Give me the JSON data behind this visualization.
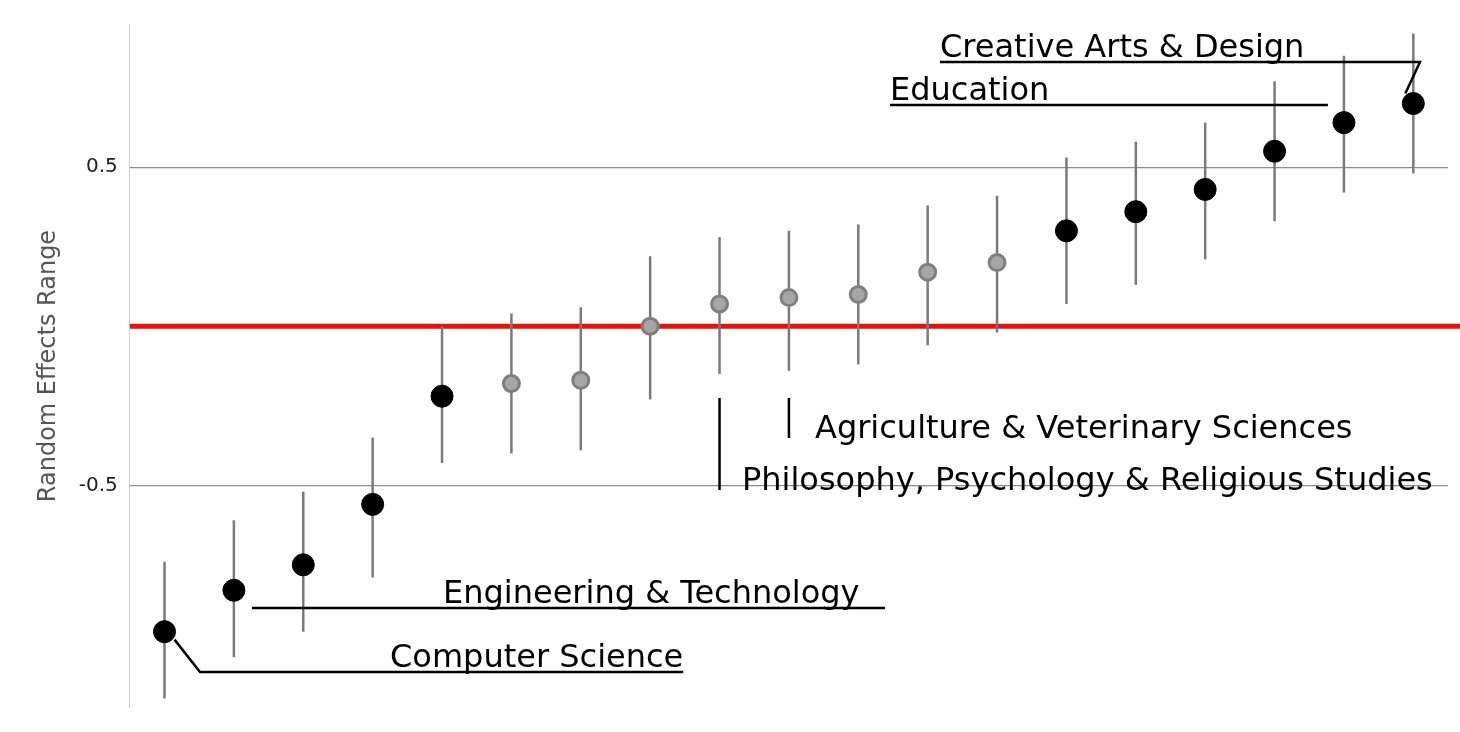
{
  "chart_data": {
    "type": "scatter",
    "ylabel": "Random Effects Range",
    "categories": [
      null,
      null,
      null,
      null,
      null,
      null,
      null,
      null,
      null,
      null,
      null,
      null,
      null,
      null,
      null,
      null,
      null,
      null,
      null
    ],
    "series": [
      {
        "name": null,
        "color": "#000000",
        "values": [
          -0.96,
          -0.83,
          -0.75,
          -0.56,
          -0.22,
          null,
          null,
          null,
          null,
          null,
          null,
          null,
          null,
          0.3,
          0.36,
          0.43,
          0.55,
          0.64,
          0.7
        ],
        "errors": [
          [
            -1.17,
            -0.74
          ],
          [
            -1.04,
            -0.61
          ],
          [
            -0.96,
            -0.52
          ],
          [
            -0.79,
            -0.35
          ],
          [
            -0.43,
            0.0
          ],
          null,
          null,
          null,
          null,
          null,
          null,
          null,
          null,
          [
            0.07,
            0.53
          ],
          [
            0.13,
            0.58
          ],
          [
            0.21,
            0.64
          ],
          [
            0.33,
            0.77
          ],
          [
            0.42,
            0.85
          ],
          [
            0.48,
            0.92
          ]
        ]
      },
      {
        "name": null,
        "color": "#a6a6a6",
        "values": [
          null,
          null,
          null,
          null,
          null,
          -0.18,
          -0.17,
          0.0,
          0.07,
          0.09,
          0.1,
          0.17,
          0.2,
          null,
          null,
          null,
          null,
          null,
          null
        ],
        "errors": [
          null,
          null,
          null,
          null,
          null,
          [
            -0.4,
            0.04
          ],
          [
            -0.39,
            0.06
          ],
          [
            -0.23,
            0.22
          ],
          [
            -0.15,
            0.28
          ],
          [
            -0.14,
            0.3
          ],
          [
            -0.12,
            0.32
          ],
          [
            -0.06,
            0.38
          ],
          [
            -0.02,
            0.41
          ],
          null,
          null,
          null,
          null,
          null,
          null
        ]
      }
    ],
    "ylim": [
      -1.2,
      0.95
    ],
    "yticks": [
      -0.5,
      0.5
    ],
    "grid": "y",
    "tick_labels": "y",
    "legend": false,
    "marker": "circle",
    "ref_lines": [
      {
        "axis": "y",
        "value": 0,
        "color": "#e8120c"
      }
    ],
    "annotations": [
      "Creative Arts & Design",
      "Education",
      "Agriculture & Veterinary Sciences",
      "Philosophy, Psychology & Religious Studies",
      "Engineering & Technology",
      "Computer Science"
    ]
  }
}
